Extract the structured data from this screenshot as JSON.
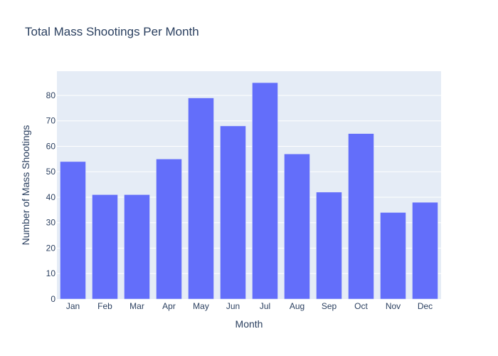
{
  "chart_data": {
    "type": "bar",
    "title": "Total Mass Shootings Per Month",
    "xlabel": "Month",
    "ylabel": "Number of Mass Shootings",
    "categories": [
      "Jan",
      "Feb",
      "Mar",
      "Apr",
      "May",
      "Jun",
      "Jul",
      "Aug",
      "Sep",
      "Oct",
      "Nov",
      "Dec"
    ],
    "values": [
      54,
      41,
      41,
      55,
      79,
      68,
      85,
      57,
      42,
      65,
      34,
      38
    ],
    "ylim": [
      0,
      89.5
    ],
    "yticks": [
      0,
      10,
      20,
      30,
      40,
      50,
      60,
      70,
      80
    ],
    "grid": true,
    "legend": "none",
    "colors": {
      "bar": "#636efa",
      "plot_background": "#e5ecf6",
      "grid": "#ffffff",
      "text": "#2a3f5f"
    }
  }
}
